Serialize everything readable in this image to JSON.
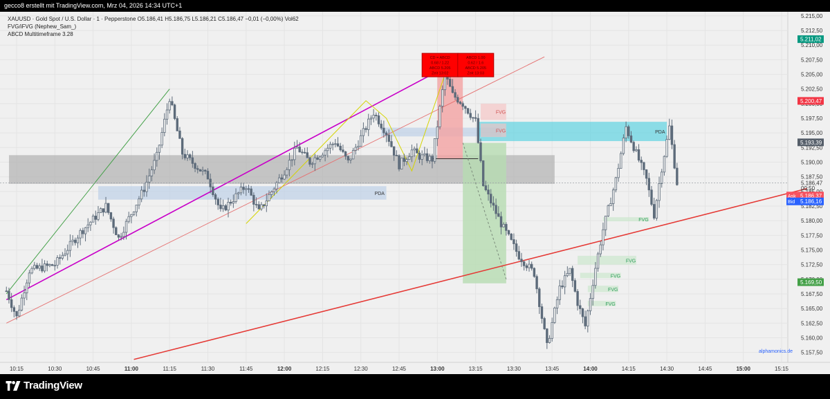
{
  "topbar": {
    "text": "gecco8 erstellt mit TradingView.com, Mrz 04, 2026 14:34 UTC+1"
  },
  "legend": {
    "symbol": "XAUUSD · Gold Spot / U.S. Dollar · 1 · Pepperstone",
    "ohlc": "O5.186,41  H5.186,75  L5.186,21  C5.186,47  −0,01 (−0,00%)  Vol62",
    "indicator1": "FVG/iFVG (Nephew_Sam_)",
    "indicator2": "ABCD Multitimeframe 3.28"
  },
  "footer": {
    "brand": "TradingView",
    "watermark": "alphamonics.de"
  },
  "colors": {
    "up": "#26a69a",
    "candle": "#5d6b7a",
    "bull_box": "#f4a3a3",
    "green_box": "#b6dcb1",
    "cyan_zone": "#4dd0e1",
    "pda_blue": "#b8cde6",
    "trend_red": "#e53935",
    "channel_magenta": "#c800c8",
    "abcd_yellow": "#d4d400"
  },
  "chart_data": {
    "type": "candlestick",
    "x_ticks": [
      "10:15",
      "10:30",
      "10:45",
      "11:00",
      "11:15",
      "11:30",
      "11:45",
      "12:00",
      "12:15",
      "12:30",
      "12:45",
      "13:00",
      "13:15",
      "13:30",
      "13:45",
      "14:00",
      "14:15",
      "14:30",
      "14:45",
      "15:00",
      "15:15"
    ],
    "y_ticks": [
      "5.215,00",
      "5.212,50",
      "5.210,00",
      "5.207,50",
      "5.205,00",
      "5.202,50",
      "5.200,00",
      "5.197,50",
      "5.195,00",
      "5.192,50",
      "5.190,00",
      "5.187,50",
      "5.185,00",
      "5.182,50",
      "5.180,00",
      "5.177,50",
      "5.175,00",
      "5.172,50",
      "5.170,00",
      "5.167,50",
      "5.165,00",
      "5.162,50",
      "5.160,00",
      "5.157,50"
    ],
    "ylim": [
      5155.8,
      5215.7
    ],
    "price_labels": [
      {
        "text": "5.211,02",
        "value": 5211.02,
        "color": "#089981"
      },
      {
        "text": "5.200,47",
        "value": 5200.47,
        "color": "#f23645"
      },
      {
        "text": "5.193,39",
        "value": 5193.39,
        "color": "#555e69"
      },
      {
        "text": "5.186,47",
        "value": 5186.47,
        "color": "none"
      },
      {
        "text": "00:50",
        "value": 5185.6,
        "color": "none"
      },
      {
        "text": "5.186,37",
        "value": 5184.3,
        "color": "#f7525f",
        "tag": "Ask"
      },
      {
        "text": "5.186,16",
        "value": 5183.3,
        "color": "#2962ff",
        "tag": "Bid"
      },
      {
        "text": "5.169,50",
        "value": 5169.5,
        "color": "#43a047"
      }
    ],
    "zones": [
      {
        "label": "",
        "x0": "10:12",
        "x1": "13:46",
        "y0": 5186.3,
        "y1": 5191.2,
        "color": "#a9a9a9"
      },
      {
        "label": "PDA",
        "x0": "10:47",
        "x1": "12:40",
        "y0": 5183.6,
        "y1": 5185.9,
        "color": "#b8cde6"
      },
      {
        "label": "",
        "x0": "12:38",
        "x1": "13:25",
        "y0": 5194.4,
        "y1": 5195.9,
        "color": "#b8cde6"
      },
      {
        "label": "PDA",
        "x0": "13:16",
        "x1": "14:30",
        "y0": 5193.6,
        "y1": 5196.9,
        "color": "#4dd0e1"
      },
      {
        "label": "FVG",
        "x0": "13:17",
        "x1": "13:27",
        "y0": 5197.2,
        "y1": 5200.0,
        "color": "#f7c1c1"
      },
      {
        "label": "FVG",
        "x0": "13:17",
        "x1": "13:27",
        "y0": 5194.3,
        "y1": 5196.6,
        "color": "#f7c1c1"
      },
      {
        "label": "FVG",
        "x0": "14:05",
        "x1": "14:23",
        "y0": 5179.9,
        "y1": 5180.6,
        "color": "#c8e6c9"
      },
      {
        "label": "FVG",
        "x0": "13:55",
        "x1": "14:18",
        "y0": 5172.5,
        "y1": 5174.0,
        "color": "#c8e6c9"
      },
      {
        "label": "FVG",
        "x0": "13:56",
        "x1": "14:12",
        "y0": 5170.2,
        "y1": 5171.1,
        "color": "#c8e6c9"
      },
      {
        "label": "FVG",
        "x0": "13:59",
        "x1": "14:11",
        "y0": 5167.8,
        "y1": 5168.9,
        "color": "#c8e6c9"
      },
      {
        "label": "FVG",
        "x0": "13:59",
        "x1": "14:10",
        "y0": 5165.4,
        "y1": 5166.3,
        "color": "#c8e6c9"
      }
    ],
    "positions": [
      {
        "x0": "13:00",
        "x1": "13:10",
        "y0": 5190.5,
        "y1": 5205.6,
        "color": "#f4a3a3"
      },
      {
        "x0": "13:10",
        "x1": "13:27",
        "y0": 5169.3,
        "y1": 5193.3,
        "color": "#b6dcb1"
      }
    ],
    "signal_boxes": [
      {
        "lines": [
          "CD = ABCD",
          "0.68 / 1.22",
          "ABCD 5.205",
          "Zeit 13:02"
        ],
        "x": "12:54",
        "y": 5208.6
      },
      {
        "lines": [
          "ABCD 1.00",
          "0.62 / 1.6",
          "ABCD 5.205",
          "Zeit 13:03"
        ],
        "x": "13:08",
        "y": 5208.6
      }
    ],
    "candles_sample": [
      {
        "t": "10:15",
        "o": 5167.0,
        "h": 5168.5,
        "l": 5162.8,
        "c": 5163.5
      },
      {
        "t": "11:15",
        "o": 5193.0,
        "h": 5202.5,
        "l": 5192.0,
        "c": 5201.0
      },
      {
        "t": "13:03",
        "o": 5196.0,
        "h": 5206.5,
        "l": 5195.0,
        "c": 5205.0
      },
      {
        "t": "13:43",
        "o": 5166.0,
        "h": 5166.5,
        "l": 5156.5,
        "c": 5158.5
      },
      {
        "t": "14:15",
        "o": 5193.0,
        "h": 5197.0,
        "l": 5192.0,
        "c": 5196.0
      },
      {
        "t": "14:34",
        "o": 5186.41,
        "h": 5186.75,
        "l": 5186.21,
        "c": 5186.47
      }
    ],
    "path_keypoints": [
      [
        "10:11",
        5168.0
      ],
      [
        "10:15",
        5163.5
      ],
      [
        "10:20",
        5171.5
      ],
      [
        "10:30",
        5172.5
      ],
      [
        "10:40",
        5178.0
      ],
      [
        "10:50",
        5182.5
      ],
      [
        "10:55",
        5177.0
      ],
      [
        "11:05",
        5185.5
      ],
      [
        "11:10",
        5191.0
      ],
      [
        "11:15",
        5201.0
      ],
      [
        "11:20",
        5191.5
      ],
      [
        "11:30",
        5187.5
      ],
      [
        "11:35",
        5181.5
      ],
      [
        "11:45",
        5186.0
      ],
      [
        "11:50",
        5181.5
      ],
      [
        "12:00",
        5188.5
      ],
      [
        "12:05",
        5192.5
      ],
      [
        "12:10",
        5190.0
      ],
      [
        "12:20",
        5193.5
      ],
      [
        "12:25",
        5190.0
      ],
      [
        "12:35",
        5198.5
      ],
      [
        "12:40",
        5195.0
      ],
      [
        "12:45",
        5189.5
      ],
      [
        "12:50",
        5192.0
      ],
      [
        "12:53",
        5191.0
      ],
      [
        "12:58",
        5190.5
      ],
      [
        "13:03",
        5205.0
      ],
      [
        "13:06",
        5201.5
      ],
      [
        "13:10",
        5200.0
      ],
      [
        "13:15",
        5197.0
      ],
      [
        "13:18",
        5186.0
      ],
      [
        "13:25",
        5179.5
      ],
      [
        "13:32",
        5174.0
      ],
      [
        "13:38",
        5171.0
      ],
      [
        "13:43",
        5158.5
      ],
      [
        "13:48",
        5168.5
      ],
      [
        "13:52",
        5171.5
      ],
      [
        "13:55",
        5166.0
      ],
      [
        "13:58",
        5162.0
      ],
      [
        "14:02",
        5172.0
      ],
      [
        "14:05",
        5178.5
      ],
      [
        "14:10",
        5187.0
      ],
      [
        "14:14",
        5196.0
      ],
      [
        "14:18",
        5191.5
      ],
      [
        "14:22",
        5187.0
      ],
      [
        "14:25",
        5181.0
      ],
      [
        "14:28",
        5189.0
      ],
      [
        "14:31",
        5196.0
      ],
      [
        "14:34",
        5186.47
      ]
    ],
    "lines": [
      {
        "name": "",
        "points": [
          [
            "10:11",
            5167.5
          ],
          [
            "11:15",
            5202.5
          ]
        ],
        "color": "#43a047"
      },
      {
        "name": "",
        "points": [
          [
            "10:11",
            5166.5
          ],
          [
            "13:04",
            5206.4
          ]
        ],
        "color": "#c800c8"
      },
      {
        "name": "",
        "points": [
          [
            "10:11",
            5162.5
          ],
          [
            "13:42",
            5208.0
          ]
        ],
        "color": "#e57373"
      },
      {
        "name": "",
        "points": [
          [
            "11:01",
            5156.3
          ],
          [
            "15:25",
            5185.5
          ]
        ],
        "color": "#e53935"
      },
      {
        "name": "",
        "points": [
          [
            "11:45",
            5179.5
          ],
          [
            "12:32",
            5200.5
          ],
          [
            "12:40",
            5197.5
          ],
          [
            "12:50",
            5188.5
          ],
          [
            "13:03",
            5205.0
          ]
        ],
        "color": "#d4d400"
      }
    ],
    "grid": true,
    "legend": "top-left"
  }
}
